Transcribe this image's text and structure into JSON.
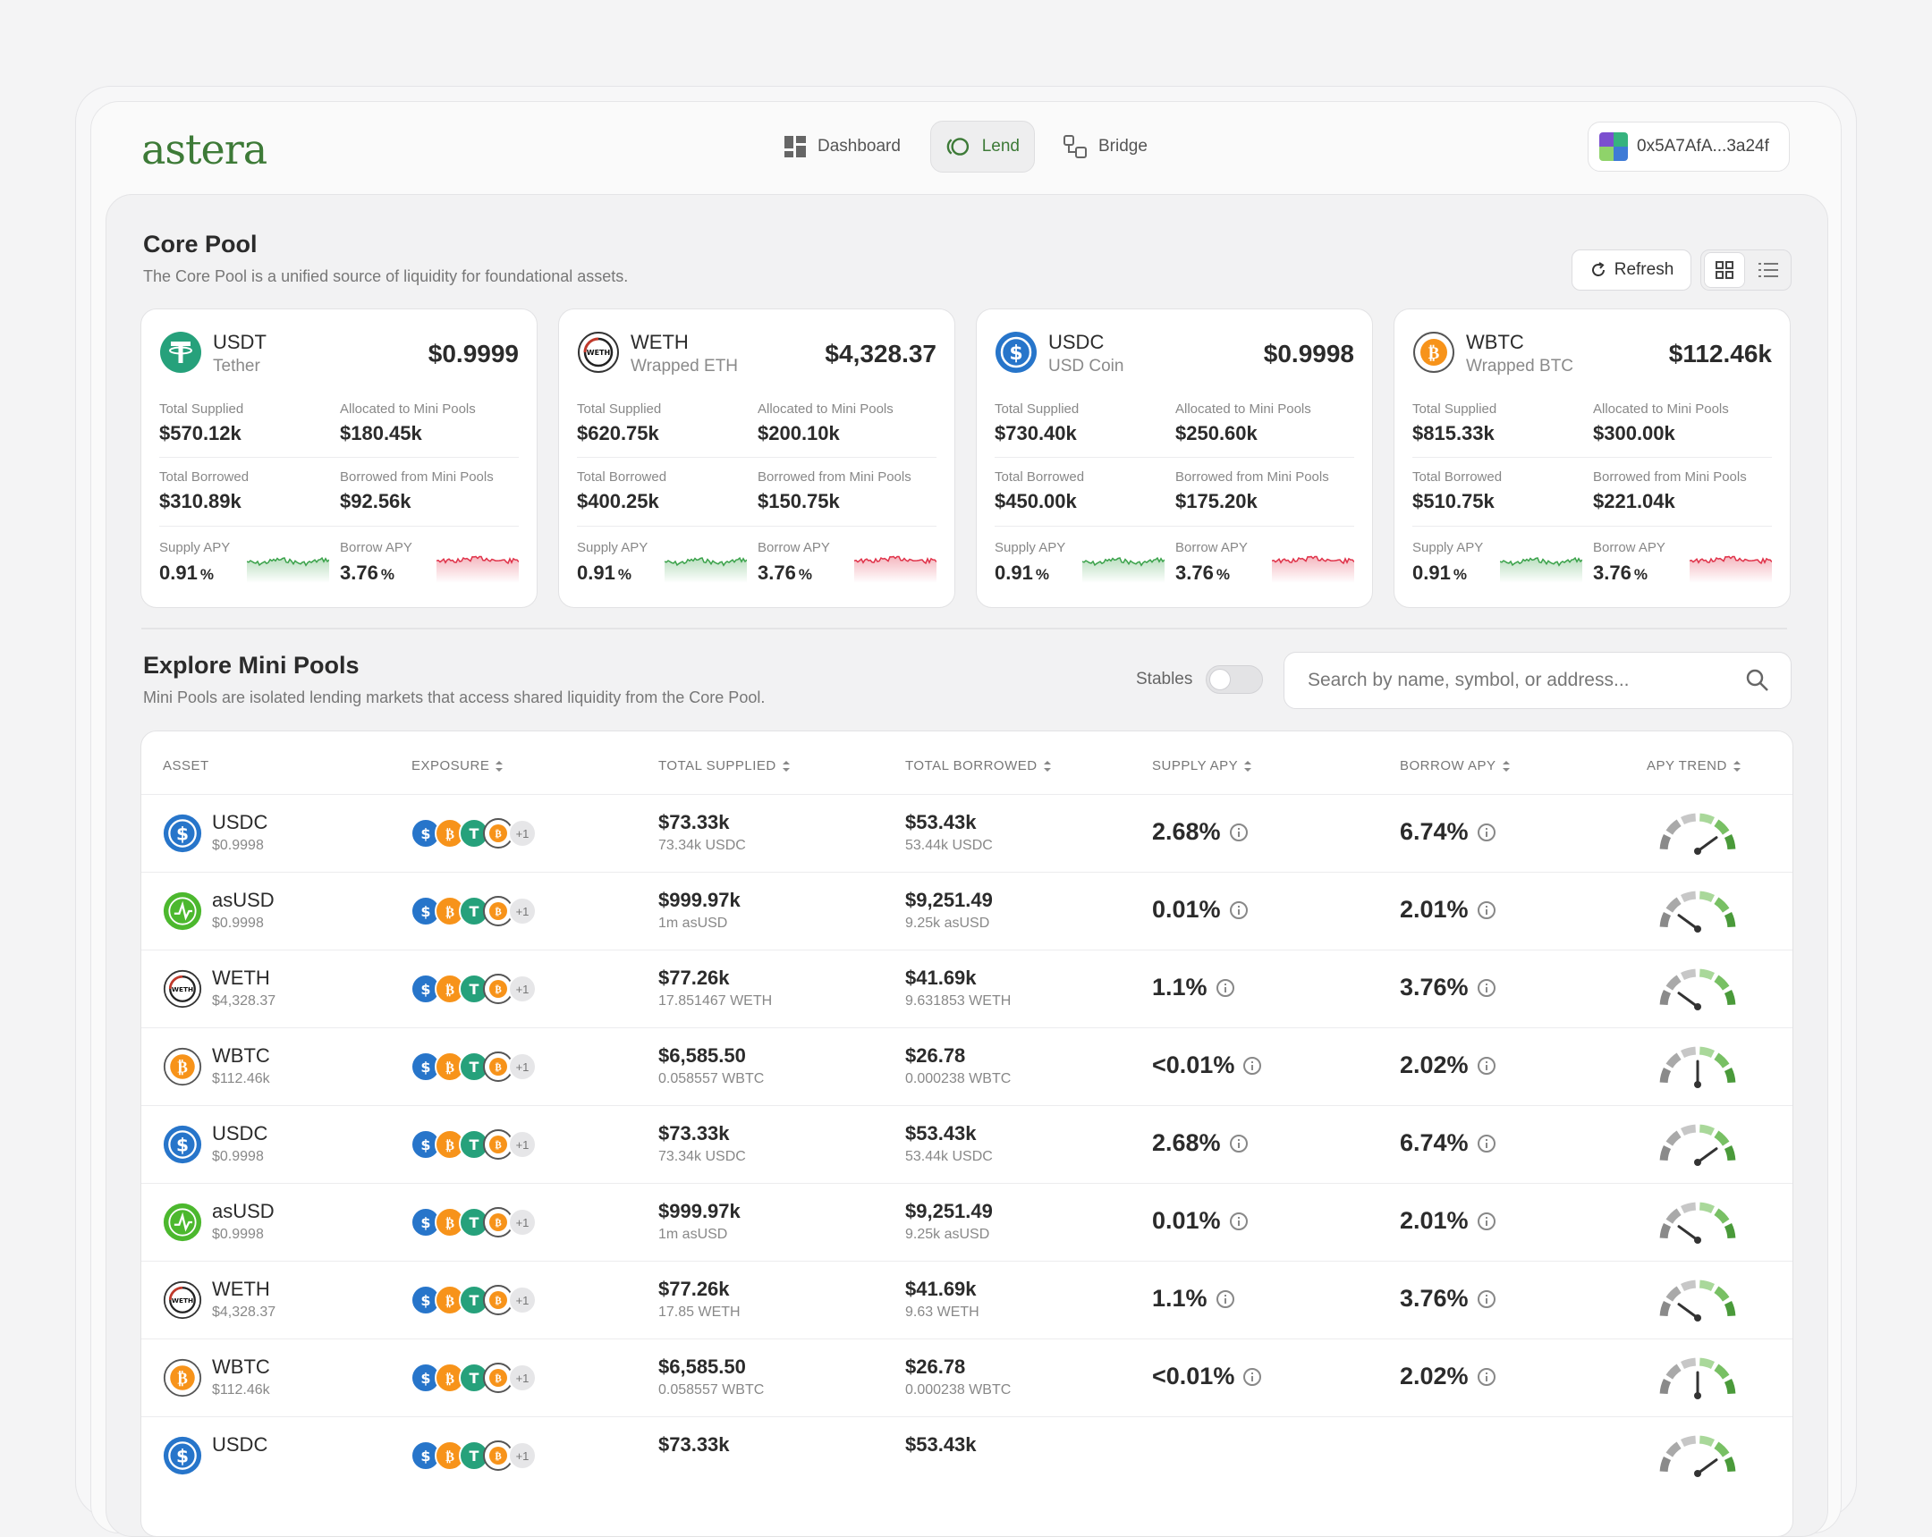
{
  "header": {
    "logo": "astera",
    "nav": [
      {
        "label": "Dashboard",
        "icon": "dashboard-icon"
      },
      {
        "label": "Lend",
        "icon": "lend-icon"
      },
      {
        "label": "Bridge",
        "icon": "bridge-icon"
      }
    ],
    "wallet_address": "0x5A7AfA...3a24f"
  },
  "core_pool": {
    "title": "Core Pool",
    "subtitle": "The Core Pool is a unified source of liquidity for foundational assets.",
    "refresh_label": "Refresh",
    "labels": {
      "total_supplied": "Total Supplied",
      "allocated": "Allocated to Mini Pools",
      "total_borrowed": "Total Borrowed",
      "borrowed_from": "Borrowed from Mini Pools",
      "supply_apy": "Supply APY",
      "borrow_apy": "Borrow APY"
    },
    "cards": [
      {
        "symbol": "USDT",
        "name": "Tether",
        "price": "$0.9999",
        "total_supplied": "$570.12k",
        "allocated": "$180.45k",
        "total_borrowed": "$310.89k",
        "borrowed_from": "$92.56k",
        "supply_apy": "0.91",
        "borrow_apy": "3.76",
        "icon": "usdt-icon"
      },
      {
        "symbol": "WETH",
        "name": "Wrapped ETH",
        "price": "$4,328.37",
        "total_supplied": "$620.75k",
        "allocated": "$200.10k",
        "total_borrowed": "$400.25k",
        "borrowed_from": "$150.75k",
        "supply_apy": "0.91",
        "borrow_apy": "3.76",
        "icon": "weth-icon"
      },
      {
        "symbol": "USDC",
        "name": "USD Coin",
        "price": "$0.9998",
        "total_supplied": "$730.40k",
        "allocated": "$250.60k",
        "total_borrowed": "$450.00k",
        "borrowed_from": "$175.20k",
        "supply_apy": "0.91",
        "borrow_apy": "3.76",
        "icon": "usdc-icon"
      },
      {
        "symbol": "WBTC",
        "name": "Wrapped BTC",
        "price": "$112.46k",
        "total_supplied": "$815.33k",
        "allocated": "$300.00k",
        "total_borrowed": "$510.75k",
        "borrowed_from": "$221.04k",
        "supply_apy": "0.91",
        "borrow_apy": "3.76",
        "icon": "wbtc-icon"
      }
    ],
    "pct": "%"
  },
  "mini_pools": {
    "title": "Explore Mini Pools",
    "subtitle": "Mini Pools are isolated lending markets that access shared liquidity from the Core Pool.",
    "stables_label": "Stables",
    "search_placeholder": "Search by name, symbol, or address...",
    "columns": [
      "ASSET",
      "EXPOSURE",
      "TOTAL SUPPLIED",
      "TOTAL BORROWED",
      "SUPPLY APY",
      "BORROW APY",
      "APY TREND"
    ],
    "exposure_more": "+1",
    "rows": [
      {
        "symbol": "USDC",
        "price": "$0.9998",
        "supplied": "$73.33k",
        "supplied_sub": "73.34k USDC",
        "borrowed": "$53.43k",
        "borrowed_sub": "53.44k USDC",
        "supply_apy": "2.68%",
        "borrow_apy": "6.74%",
        "trend": 0.8
      },
      {
        "symbol": "asUSD",
        "price": "$0.9998",
        "supplied": "$999.97k",
        "supplied_sub": "1m asUSD",
        "borrowed": "$9,251.49",
        "borrowed_sub": "9.25k asUSD",
        "supply_apy": "0.01%",
        "borrow_apy": "2.01%",
        "trend": 0.2
      },
      {
        "symbol": "WETH",
        "price": "$4,328.37",
        "supplied": "$77.26k",
        "supplied_sub": "17.851467 WETH",
        "borrowed": "$41.69k",
        "borrowed_sub": "9.631853 WETH",
        "supply_apy": "1.1%",
        "borrow_apy": "3.76%",
        "trend": 0.2
      },
      {
        "symbol": "WBTC",
        "price": "$112.46k",
        "supplied": "$6,585.50",
        "supplied_sub": "0.058557 WBTC",
        "borrowed": "$26.78",
        "borrowed_sub": "0.000238 WBTC",
        "supply_apy": "<0.01%",
        "borrow_apy": "2.02%",
        "trend": 0.5
      },
      {
        "symbol": "USDC",
        "price": "$0.9998",
        "supplied": "$73.33k",
        "supplied_sub": "73.34k USDC",
        "borrowed": "$53.43k",
        "borrowed_sub": "53.44k USDC",
        "supply_apy": "2.68%",
        "borrow_apy": "6.74%",
        "trend": 0.8
      },
      {
        "symbol": "asUSD",
        "price": "$0.9998",
        "supplied": "$999.97k",
        "supplied_sub": "1m asUSD",
        "borrowed": "$9,251.49",
        "borrowed_sub": "9.25k asUSD",
        "supply_apy": "0.01%",
        "borrow_apy": "2.01%",
        "trend": 0.2
      },
      {
        "symbol": "WETH",
        "price": "$4,328.37",
        "supplied": "$77.26k",
        "supplied_sub": "17.85 WETH",
        "borrowed": "$41.69k",
        "borrowed_sub": "9.63 WETH",
        "supply_apy": "1.1%",
        "borrow_apy": "3.76%",
        "trend": 0.2
      },
      {
        "symbol": "WBTC",
        "price": "$112.46k",
        "supplied": "$6,585.50",
        "supplied_sub": "0.058557 WBTC",
        "borrowed": "$26.78",
        "borrowed_sub": "0.000238 WBTC",
        "supply_apy": "<0.01%",
        "borrow_apy": "2.02%",
        "trend": 0.5
      },
      {
        "symbol": "USDC",
        "price": "",
        "supplied": "$73.33k",
        "supplied_sub": "",
        "borrowed": "$53.43k",
        "borrowed_sub": "",
        "supply_apy": "",
        "borrow_apy": "",
        "trend": 0.8
      }
    ]
  },
  "colors": {
    "brand": "#3d7a37",
    "supply_spark": "#3aa24a",
    "borrow_spark": "#e0334a",
    "usdc": "#2775ca",
    "usdt": "#26a17b",
    "wbtc": "#f7931a",
    "asusd": "#4cb82e"
  }
}
